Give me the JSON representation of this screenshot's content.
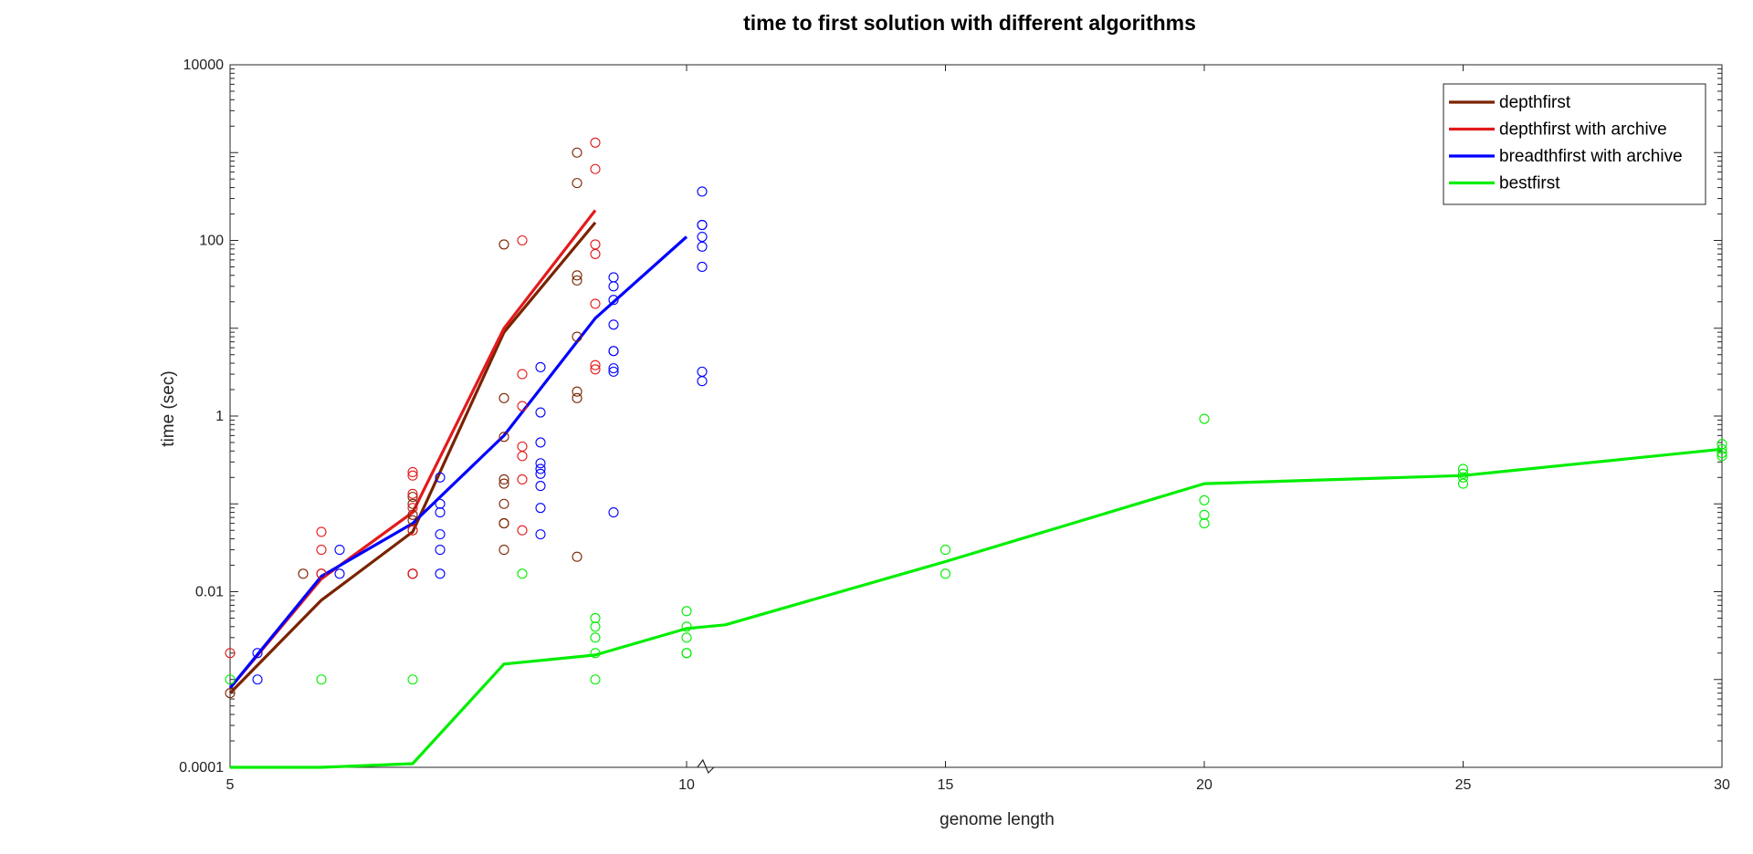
{
  "chart_data": {
    "type": "line",
    "title": "time to first solution with different algorithms",
    "xlabel": "genome length",
    "ylabel": "time (sec)",
    "x_scale": "broken-linear",
    "x_segments": [
      [
        5,
        10
      ],
      [
        10,
        30
      ]
    ],
    "xlim": [
      5,
      30
    ],
    "x_ticks": [
      5,
      10,
      15,
      20,
      25,
      30
    ],
    "x_tick_labels": [
      "5",
      "10",
      "15",
      "20",
      "25",
      "30"
    ],
    "y_scale": "log",
    "ylim": [
      0.0001,
      10000
    ],
    "y_ticks": [
      0.0001,
      0.01,
      1,
      100,
      10000
    ],
    "y_tick_labels": [
      "0.0001",
      "0.01",
      "1",
      "100",
      "10000"
    ],
    "legend_position": "top-right",
    "grid": false,
    "series": [
      {
        "name": "depthfirst",
        "color": "#7a2300",
        "line": {
          "x": [
            5,
            6,
            7,
            8,
            9
          ],
          "y": [
            0.0007,
            0.008,
            0.048,
            9,
            160
          ]
        },
        "points": {
          "x": [
            5,
            5.8,
            6,
            7,
            7,
            7,
            7,
            7,
            7,
            7,
            8,
            8,
            8,
            8,
            8,
            8,
            8,
            8,
            8,
            8.8,
            8.8,
            8.8,
            8.8,
            8.8,
            8.8,
            8.8,
            8.8
          ],
          "y": [
            0.0007,
            0.016,
            0.016,
            0.12,
            0.1,
            0.075,
            0.065,
            0.05,
            0.016,
            0.016,
            90,
            1.6,
            0.58,
            0.19,
            0.1,
            0.06,
            0.17,
            0.06,
            0.03,
            1000,
            450,
            40,
            35,
            8,
            1.9,
            1.6,
            0.025
          ]
        }
      },
      {
        "name": "depthfirst with archive",
        "color": "#e31a1c",
        "line": {
          "x": [
            5,
            6,
            7,
            8,
            9
          ],
          "y": [
            0.0008,
            0.014,
            0.08,
            10,
            220
          ]
        },
        "points": {
          "x": [
            5,
            6,
            6,
            6,
            7,
            7,
            7,
            7,
            7,
            7,
            8.2,
            8.2,
            8.2,
            8.2,
            8.2,
            8.2,
            8.2,
            9,
            9,
            9,
            9,
            9,
            9,
            9
          ],
          "y": [
            0.002,
            0.048,
            0.03,
            0.016,
            0.23,
            0.21,
            0.13,
            0.09,
            0.05,
            0.016,
            100,
            3,
            1.3,
            0.45,
            0.35,
            0.19,
            0.05,
            1300,
            650,
            90,
            70,
            19,
            3.8,
            3.4
          ]
        }
      },
      {
        "name": "breadthfirst with archive",
        "color": "#0000ff",
        "line": {
          "x": [
            5,
            6,
            7,
            8,
            9,
            10
          ],
          "y": [
            0.0008,
            0.015,
            0.06,
            0.6,
            13,
            110
          ]
        },
        "points": {
          "x": [
            5.3,
            5.3,
            6.2,
            6.2,
            7.3,
            7.3,
            7.3,
            7.3,
            7.3,
            7.3,
            8.4,
            8.4,
            8.4,
            8.4,
            8.4,
            8.4,
            8.4,
            8.4,
            8.4,
            9.2,
            9.2,
            9.2,
            9.2,
            9.2,
            9.2,
            9.2,
            9.2,
            9.2,
            10.3,
            10.3,
            10.3,
            10.3,
            10.3,
            10.3,
            10.3,
            10.3
          ],
          "y": [
            0.002,
            0.001,
            0.03,
            0.016,
            0.2,
            0.1,
            0.08,
            0.045,
            0.03,
            0.016,
            3.6,
            1.1,
            0.5,
            0.29,
            0.25,
            0.22,
            0.16,
            0.09,
            0.045,
            38,
            30,
            21,
            11,
            5.5,
            5.5,
            3.5,
            3.2,
            0.08,
            360,
            150,
            150,
            110,
            85,
            50,
            3.2,
            2.5
          ]
        }
      },
      {
        "name": "bestfirst",
        "color": "#00ee00",
        "line": {
          "x": [
            5,
            6,
            7,
            8,
            9,
            10,
            10.75,
            15,
            20,
            25,
            30
          ],
          "y": [
            0.0001,
            0.0001,
            0.00011,
            0.0015,
            0.0019,
            0.0038,
            0.0042,
            0.022,
            0.17,
            0.21,
            0.42
          ]
        },
        "points": {
          "x": [
            5,
            6,
            7,
            8.2,
            9,
            9,
            9,
            9,
            9,
            10,
            10,
            10,
            10,
            10,
            15,
            15,
            20,
            20,
            20,
            20,
            25,
            25,
            25,
            25,
            30,
            30,
            30,
            30
          ],
          "y": [
            0.001,
            0.001,
            0.001,
            0.016,
            0.005,
            0.004,
            0.003,
            0.002,
            0.001,
            0.006,
            0.004,
            0.003,
            0.002,
            0.002,
            0.03,
            0.016,
            0.93,
            0.11,
            0.075,
            0.06,
            0.25,
            0.22,
            0.2,
            0.17,
            0.48,
            0.42,
            0.38,
            0.35
          ]
        }
      }
    ]
  }
}
